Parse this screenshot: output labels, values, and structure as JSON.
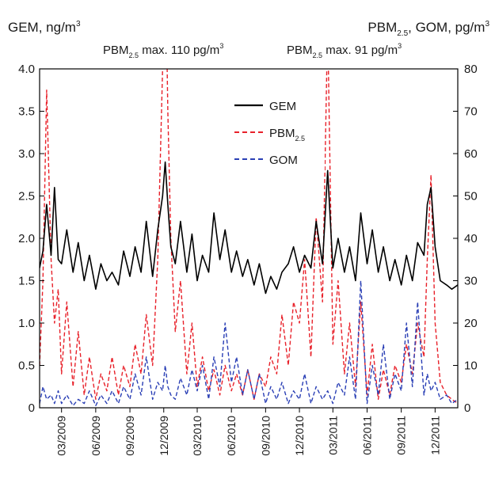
{
  "chart_data": {
    "type": "line",
    "left_axis_label": {
      "main": "GEM, ng/m",
      "sup": "3"
    },
    "right_axis_label": {
      "p1": "PBM",
      "sub": "2.5",
      "p2": ", GOM, pg/m",
      "sup": "3"
    },
    "annotations": [
      {
        "p1": "PBM",
        "sub": "2.5",
        "p2": " max. 110 pg/m",
        "sup": "3"
      },
      {
        "p1": "PBM",
        "sub": "2.5",
        "p2": " max. 91 pg/m",
        "sup": "3"
      }
    ],
    "y_left": {
      "min": 0,
      "max": 4.0,
      "ticks": [
        "0",
        "0.5",
        "1.0",
        "1.5",
        "2.0",
        "2.5",
        "3.0",
        "3.5",
        "4.0"
      ]
    },
    "y_right": {
      "min": 0,
      "max": 80,
      "ticks": [
        "0",
        "10",
        "20",
        "30",
        "40",
        "50",
        "60",
        "70",
        "80"
      ]
    },
    "x_time": {
      "start": "2009-01-01",
      "end": "2012-01-31"
    },
    "x_ticks": [
      "03/2009",
      "06/2009",
      "09/2009",
      "12/2009",
      "03/2010",
      "06/2010",
      "09/2010",
      "12/2010",
      "03/2011",
      "06/2011",
      "09/2011",
      "12/2011"
    ],
    "grid": false,
    "legend": {
      "position": "top-center",
      "items": [
        {
          "label": "GEM",
          "sub": "",
          "color": "#000000",
          "dash": "solid"
        },
        {
          "label": "PBM",
          "sub": "2.5",
          "color": "#e8212a",
          "dash": "dashed"
        },
        {
          "label": "GOM",
          "sub": "",
          "color": "#2a3fb5",
          "dash": "dashed"
        }
      ]
    },
    "series": [
      {
        "name": "GEM",
        "axis": "left",
        "color": "#000000",
        "dash": "solid",
        "x": [
          "2009-01-01",
          "2009-01-10",
          "2009-01-20",
          "2009-02-01",
          "2009-02-10",
          "2009-02-20",
          "2009-03-01",
          "2009-03-15",
          "2009-04-01",
          "2009-04-15",
          "2009-05-01",
          "2009-05-15",
          "2009-06-01",
          "2009-06-15",
          "2009-07-01",
          "2009-07-15",
          "2009-08-01",
          "2009-08-15",
          "2009-09-01",
          "2009-09-15",
          "2009-10-01",
          "2009-10-15",
          "2009-11-01",
          "2009-11-15",
          "2009-11-28",
          "2009-12-05",
          "2009-12-12",
          "2009-12-20",
          "2010-01-01",
          "2010-01-15",
          "2010-02-01",
          "2010-02-15",
          "2010-03-01",
          "2010-03-15",
          "2010-04-01",
          "2010-04-15",
          "2010-05-01",
          "2010-05-15",
          "2010-06-01",
          "2010-06-15",
          "2010-07-01",
          "2010-07-15",
          "2010-08-01",
          "2010-08-15",
          "2010-09-01",
          "2010-09-15",
          "2010-10-01",
          "2010-10-15",
          "2010-11-01",
          "2010-11-15",
          "2010-12-01",
          "2010-12-15",
          "2011-01-01",
          "2011-01-15",
          "2011-02-01",
          "2011-02-15",
          "2011-03-01",
          "2011-03-15",
          "2011-04-01",
          "2011-04-15",
          "2011-05-01",
          "2011-05-15",
          "2011-06-01",
          "2011-06-15",
          "2011-07-01",
          "2011-07-15",
          "2011-08-01",
          "2011-08-15",
          "2011-09-01",
          "2011-09-15",
          "2011-10-01",
          "2011-10-15",
          "2011-11-01",
          "2011-11-10",
          "2011-11-20",
          "2011-12-01",
          "2011-12-15",
          "2012-01-01",
          "2012-01-15",
          "2012-01-31"
        ],
        "y": [
          1.65,
          1.85,
          2.4,
          1.8,
          2.6,
          1.75,
          1.7,
          2.1,
          1.6,
          1.95,
          1.5,
          1.8,
          1.4,
          1.7,
          1.5,
          1.6,
          1.45,
          1.85,
          1.55,
          1.9,
          1.6,
          2.2,
          1.55,
          2.1,
          2.5,
          2.9,
          2.4,
          1.9,
          1.7,
          2.2,
          1.6,
          2.05,
          1.5,
          1.8,
          1.6,
          2.3,
          1.75,
          2.1,
          1.6,
          1.85,
          1.55,
          1.75,
          1.45,
          1.7,
          1.35,
          1.55,
          1.4,
          1.6,
          1.7,
          1.9,
          1.6,
          1.8,
          1.65,
          2.2,
          1.7,
          2.8,
          1.65,
          2.0,
          1.6,
          1.9,
          1.5,
          2.3,
          1.7,
          2.1,
          1.6,
          1.9,
          1.5,
          1.75,
          1.45,
          1.8,
          1.5,
          1.95,
          1.8,
          2.4,
          2.6,
          1.9,
          1.5,
          1.45,
          1.4,
          1.45
        ]
      },
      {
        "name": "PBM",
        "axis": "right",
        "color": "#e8212a",
        "dash": "dashed",
        "x": [
          "2009-01-01",
          "2009-01-10",
          "2009-01-20",
          "2009-02-01",
          "2009-02-10",
          "2009-02-20",
          "2009-03-01",
          "2009-03-15",
          "2009-04-01",
          "2009-04-15",
          "2009-05-01",
          "2009-05-15",
          "2009-06-01",
          "2009-06-15",
          "2009-07-01",
          "2009-07-15",
          "2009-08-01",
          "2009-08-15",
          "2009-09-01",
          "2009-09-15",
          "2009-10-01",
          "2009-10-15",
          "2009-11-01",
          "2009-11-15",
          "2009-11-28",
          "2009-12-05",
          "2009-12-12",
          "2009-12-20",
          "2010-01-01",
          "2010-01-15",
          "2010-02-01",
          "2010-02-15",
          "2010-03-01",
          "2010-03-15",
          "2010-04-01",
          "2010-04-15",
          "2010-05-01",
          "2010-05-15",
          "2010-06-01",
          "2010-06-15",
          "2010-07-01",
          "2010-07-15",
          "2010-08-01",
          "2010-08-15",
          "2010-09-01",
          "2010-09-15",
          "2010-10-01",
          "2010-10-15",
          "2010-11-01",
          "2010-11-15",
          "2010-12-01",
          "2010-12-15",
          "2011-01-01",
          "2011-01-15",
          "2011-02-01",
          "2011-02-15",
          "2011-03-01",
          "2011-03-15",
          "2011-04-01",
          "2011-04-15",
          "2011-05-01",
          "2011-05-15",
          "2011-06-01",
          "2011-06-15",
          "2011-07-01",
          "2011-07-15",
          "2011-08-01",
          "2011-08-15",
          "2011-09-01",
          "2011-09-15",
          "2011-10-01",
          "2011-10-15",
          "2011-11-01",
          "2011-11-10",
          "2011-11-20",
          "2011-12-01",
          "2011-12-15",
          "2012-01-01",
          "2012-01-15",
          "2012-01-31"
        ],
        "y": [
          10,
          30,
          75,
          35,
          20,
          28,
          8,
          25,
          5,
          18,
          3,
          12,
          2,
          8,
          4,
          12,
          3,
          10,
          5,
          15,
          8,
          22,
          10,
          35,
          80,
          110,
          70,
          40,
          18,
          30,
          8,
          20,
          5,
          12,
          4,
          9,
          3,
          10,
          4,
          8,
          3,
          9,
          2,
          8,
          5,
          12,
          8,
          22,
          10,
          25,
          20,
          35,
          12,
          45,
          25,
          91,
          15,
          30,
          8,
          20,
          5,
          25,
          3,
          15,
          2,
          9,
          3,
          10,
          6,
          15,
          8,
          20,
          12,
          35,
          55,
          20,
          6,
          3,
          2,
          1
        ]
      },
      {
        "name": "GOM",
        "axis": "right",
        "color": "#2a3fb5",
        "dash": "dashed",
        "x": [
          "2009-01-01",
          "2009-01-10",
          "2009-01-20",
          "2009-02-01",
          "2009-02-10",
          "2009-02-20",
          "2009-03-01",
          "2009-03-15",
          "2009-04-01",
          "2009-04-15",
          "2009-05-01",
          "2009-05-15",
          "2009-06-01",
          "2009-06-15",
          "2009-07-01",
          "2009-07-15",
          "2009-08-01",
          "2009-08-15",
          "2009-09-01",
          "2009-09-15",
          "2009-10-01",
          "2009-10-15",
          "2009-11-01",
          "2009-11-15",
          "2009-11-28",
          "2009-12-05",
          "2009-12-12",
          "2009-12-20",
          "2010-01-01",
          "2010-01-15",
          "2010-02-01",
          "2010-02-15",
          "2010-03-01",
          "2010-03-15",
          "2010-04-01",
          "2010-04-15",
          "2010-05-01",
          "2010-05-15",
          "2010-06-01",
          "2010-06-15",
          "2010-07-01",
          "2010-07-15",
          "2010-08-01",
          "2010-08-15",
          "2010-09-01",
          "2010-09-15",
          "2010-10-01",
          "2010-10-15",
          "2010-11-01",
          "2010-11-15",
          "2010-12-01",
          "2010-12-15",
          "2011-01-01",
          "2011-01-15",
          "2011-02-01",
          "2011-02-15",
          "2011-03-01",
          "2011-03-15",
          "2011-04-01",
          "2011-04-15",
          "2011-05-01",
          "2011-05-15",
          "2011-06-01",
          "2011-06-15",
          "2011-07-01",
          "2011-07-15",
          "2011-08-01",
          "2011-08-15",
          "2011-09-01",
          "2011-09-15",
          "2011-10-01",
          "2011-10-15",
          "2011-11-01",
          "2011-11-10",
          "2011-11-20",
          "2011-12-01",
          "2011-12-15",
          "2012-01-01",
          "2012-01-15",
          "2012-01-31"
        ],
        "y": [
          1,
          5,
          2,
          3,
          1,
          4,
          1,
          3,
          0.5,
          2,
          1,
          4,
          0.5,
          3,
          1,
          4,
          1,
          5,
          2,
          8,
          3,
          12,
          2,
          6,
          4,
          10,
          5,
          3,
          2,
          7,
          3,
          9,
          4,
          10,
          2,
          12,
          5,
          20,
          6,
          12,
          3,
          9,
          2,
          8,
          1,
          5,
          2,
          6,
          1,
          4,
          2,
          8,
          1,
          5,
          2,
          4,
          1,
          6,
          3,
          12,
          2,
          30,
          1,
          10,
          3,
          15,
          2,
          8,
          4,
          20,
          5,
          25,
          3,
          8,
          4,
          6,
          2,
          3,
          1,
          2
        ]
      }
    ]
  }
}
